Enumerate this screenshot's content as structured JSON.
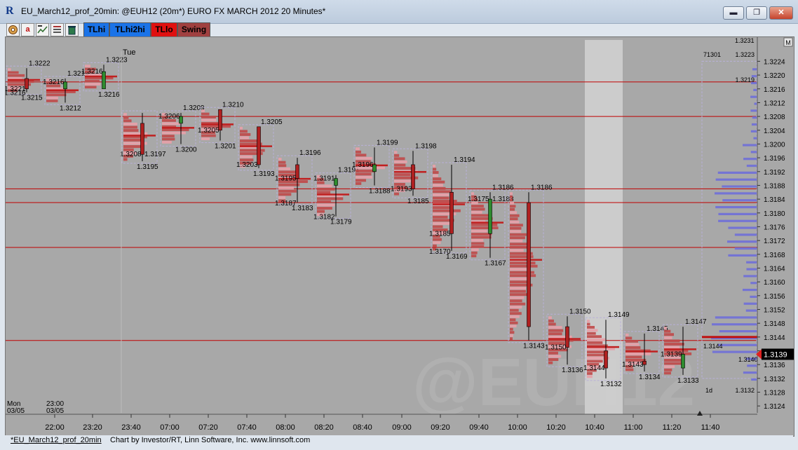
{
  "window": {
    "title": "EU_March12_prof_20min: @EUH12 (20m*) EURO FX MARCH 2012 20 Minutes*",
    "app_icon": "R",
    "minimize_glyph": "▬",
    "restore_glyph": "❐",
    "close_glyph": "✕"
  },
  "toolbar": {
    "icons": [
      "gear-icon",
      "a-letter-icon",
      "title-icon",
      "list-icon",
      "trash-icon"
    ],
    "a_letter": "a",
    "buttons": [
      {
        "label": "TLhi",
        "bg": "#1a73e8",
        "fg": "#000000"
      },
      {
        "label": "TLhi2hi",
        "bg": "#1a73e8",
        "fg": "#000000"
      },
      {
        "label": "TLlo",
        "bg": "#e01010",
        "fg": "#000000"
      },
      {
        "label": "Swing",
        "bg": "#a04040",
        "fg": "#000000"
      }
    ]
  },
  "watermark": "@EUH12",
  "corner_label": "M",
  "top_axis_value": "1.3231",
  "day_label": "Tue",
  "profile_count": "71301",
  "profile_tag": "1d",
  "date_labels": [
    {
      "line1": "Mon",
      "line2": "03/05"
    },
    {
      "line1": "23:00",
      "line2": "03/05"
    }
  ],
  "chart_data": {
    "type": "table",
    "y_axis": {
      "min": 1.3122,
      "max": 1.3231,
      "ticks": [
        "1.3124",
        "1.3128",
        "1.3132",
        "1.3136",
        "1.3140",
        "1.3144",
        "1.3148",
        "1.3152",
        "1.3156",
        "1.3160",
        "1.3164",
        "1.3168",
        "1.3172",
        "1.3176",
        "1.3180",
        "1.3184",
        "1.3188",
        "1.3192",
        "1.3196",
        "1.3200",
        "1.3204",
        "1.3208",
        "1.3212",
        "1.3216",
        "1.3220",
        "1.3224"
      ]
    },
    "x_axis": {
      "ticks": [
        "22:00",
        "23:20",
        "23:40",
        "07:00",
        "07:20",
        "07:40",
        "08:00",
        "08:20",
        "08:40",
        "09:00",
        "09:20",
        "09:40",
        "10:00",
        "10:20",
        "10:40",
        "11:00",
        "11:20",
        "11:40"
      ]
    },
    "last_price": "1.3139",
    "axis_right_labels": [
      "1.3223",
      "1.3219",
      "1.3132"
    ],
    "horizontal_lines": [
      1.3218,
      1.3208,
      1.3187,
      1.3183,
      1.317,
      1.3143
    ],
    "highlight_column": "10:40",
    "bars": [
      {
        "time": "21:40",
        "open": 1.3219,
        "high": 1.3222,
        "low": 1.3215,
        "close": 1.3216,
        "hi_label": "1.3222",
        "lo_label": "1.3215",
        "left_label": "1.3221",
        "left2_label": "1.3216"
      },
      {
        "time": "22:00",
        "open": 1.3216,
        "high": 1.3219,
        "low": 1.3212,
        "close": 1.3218,
        "hi_label": "1.3219",
        "lo_label": "1.3212",
        "left_label": "1.3216"
      },
      {
        "time": "23:20",
        "open": 1.3216,
        "high": 1.3223,
        "low": 1.3216,
        "close": 1.3221,
        "hi_label": "1.3223",
        "lo_label": "1.3216",
        "left_label": "1.3216"
      },
      {
        "time": "23:40",
        "open": 1.3206,
        "high": 1.3209,
        "low": 1.3195,
        "close": 1.3197,
        "hi_label": "",
        "lo_label": "1.3195",
        "left_label": "1.3208",
        "right_label": "1.3197"
      },
      {
        "time": "07:00",
        "open": 1.3206,
        "high": 1.3209,
        "low": 1.32,
        "close": 1.3208,
        "hi_label": "1.3209",
        "lo_label": "1.3200",
        "left_label": "1.3206"
      },
      {
        "time": "07:20",
        "open": 1.321,
        "high": 1.321,
        "low": 1.3201,
        "close": 1.3204,
        "hi_label": "1.3210",
        "lo_label": "1.3201",
        "left_label": "1.3205"
      },
      {
        "time": "07:40",
        "open": 1.3205,
        "high": 1.3205,
        "low": 1.3193,
        "close": 1.3194,
        "hi_label": "1.3205",
        "lo_label": "1.3193",
        "left_label": "1.3203"
      },
      {
        "time": "08:00",
        "open": 1.3194,
        "high": 1.3196,
        "low": 1.3183,
        "close": 1.319,
        "hi_label": "1.3196",
        "lo_label": "1.3183",
        "left_label": "1.3195",
        "left2_label": "1.3187"
      },
      {
        "time": "08:20",
        "open": 1.3188,
        "high": 1.3191,
        "low": 1.3179,
        "close": 1.319,
        "hi_label": "1.3191",
        "lo_label": "1.3179",
        "left_label": "1.3191",
        "left2_label": "1.3182"
      },
      {
        "time": "08:40",
        "open": 1.3192,
        "high": 1.3199,
        "low": 1.3188,
        "close": 1.3194,
        "hi_label": "1.3199",
        "lo_label": "1.3188",
        "left_label": "1.3196"
      },
      {
        "time": "09:00",
        "open": 1.3194,
        "high": 1.3198,
        "low": 1.3185,
        "close": 1.3187,
        "hi_label": "1.3198",
        "lo_label": "1.3185",
        "left_label": "1.3193"
      },
      {
        "time": "09:20",
        "open": 1.3186,
        "high": 1.3194,
        "low": 1.3169,
        "close": 1.3174,
        "hi_label": "1.3194",
        "lo_label": "1.3169",
        "left_label": "1.3185",
        "left2_label": "1.3170"
      },
      {
        "time": "09:40",
        "open": 1.3174,
        "high": 1.3186,
        "low": 1.3167,
        "close": 1.3184,
        "hi_label": "1.3186",
        "lo_label": "1.3167",
        "left_label": "1.3175",
        "right_label": "1.3183"
      },
      {
        "time": "10:00",
        "open": 1.3183,
        "high": 1.3186,
        "low": 1.3143,
        "close": 1.3147,
        "hi_label": "1.3186",
        "lo_label": "1.3143",
        "left_label": ""
      },
      {
        "time": "10:20",
        "open": 1.3147,
        "high": 1.315,
        "low": 1.3136,
        "close": 1.3141,
        "hi_label": "1.3150",
        "lo_label": "1.3136",
        "left_label": "1.3150"
      },
      {
        "time": "10:40",
        "open": 1.314,
        "high": 1.3149,
        "low": 1.3132,
        "close": 1.3135,
        "hi_label": "1.3149",
        "lo_label": "1.3132",
        "left_label": "1.3144"
      },
      {
        "time": "11:00",
        "open": 1.3137,
        "high": 1.3145,
        "low": 1.3134,
        "close": 1.3136,
        "hi_label": "1.3145",
        "lo_label": "1.3134",
        "left_label": "1.3143"
      },
      {
        "time": "11:20",
        "open": 1.3135,
        "high": 1.3147,
        "low": 1.3133,
        "close": 1.3139,
        "hi_label": "1.3147",
        "lo_label": "1.3133",
        "left_label": "1.3139"
      }
    ],
    "profile_labels": {
      "top": "1.3223",
      "upper": "1.3219",
      "mid": "1.3144",
      "low": "1.3140",
      "bottom": "1.3132"
    }
  },
  "status": {
    "tab": "*EU_March12_prof_20min",
    "credit": "Chart by Investor/RT, Linn Software, Inc. www.linnsoft.com"
  },
  "colors": {
    "chart_bg": "#a8a8a8",
    "profile_red": "#c04848",
    "profile_pink": "#e8a0a8",
    "profile_blue": "#6e6ed8",
    "up_candle": "#2e8b2e",
    "down_candle": "#b02020",
    "level_line": "#c00000",
    "highlight": "#d2d2d2"
  }
}
